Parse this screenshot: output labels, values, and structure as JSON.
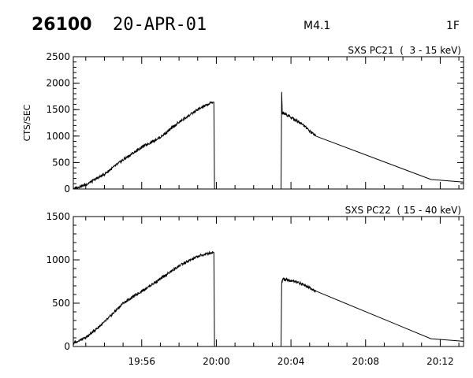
{
  "header": {
    "event_id": "26100",
    "date": "20-APR-01",
    "flare_class": "M4.1",
    "code": "1F"
  },
  "chart_data": [
    {
      "type": "line",
      "title": "SXS PC21  (  3 - 15 keV)",
      "ylabel": "CTS/SEC",
      "xlim": [
        "19:52:20",
        "20:13:15"
      ],
      "ylim": [
        0,
        2500
      ],
      "yticks": [
        0,
        500,
        1000,
        1500,
        2000,
        2500
      ],
      "xticks": [
        "19:56",
        "20:00",
        "20:04",
        "20:08",
        "20:12"
      ],
      "series": [
        {
          "segments": [
            {
              "x": [
                "19:52:20",
                "19:53:00",
                "19:54:00",
                "19:55:00",
                "19:56:00",
                "19:57:00",
                "19:58:00",
                "19:59:00",
                "19:59:50"
              ],
              "y": [
                10,
                80,
                280,
                550,
                790,
                980,
                1260,
                1500,
                1650
              ]
            },
            {
              "x": [
                "19:59:52",
                "19:59:54"
              ],
              "y": [
                1650,
                0
              ]
            },
            {
              "x": [
                "20:03:28",
                "20:03:30",
                "20:03:32",
                "20:03:40",
                "20:04:30",
                "20:05:20"
              ],
              "y": [
                0,
                1850,
                1450,
                1420,
                1250,
                1000
              ]
            },
            {
              "x": [
                "20:05:20",
                "20:11:30",
                "20:13:15"
              ],
              "y": [
                1000,
                180,
                130
              ]
            }
          ]
        }
      ]
    },
    {
      "type": "line",
      "title": "SXS PC22  ( 15 - 40 keV)",
      "ylabel": "",
      "xlim": [
        "19:52:20",
        "20:13:15"
      ],
      "ylim": [
        0,
        1500
      ],
      "yticks": [
        0,
        500,
        1000,
        1500
      ],
      "xticks": [
        "19:56",
        "20:00",
        "20:04",
        "20:08",
        "20:12"
      ],
      "series": [
        {
          "segments": [
            {
              "x": [
                "19:52:20",
                "19:53:00",
                "19:54:00",
                "19:55:00",
                "19:56:00",
                "19:57:00",
                "19:58:00",
                "19:59:00",
                "19:59:50"
              ],
              "y": [
                40,
                100,
                280,
                500,
                640,
                780,
                930,
                1040,
                1090
              ]
            },
            {
              "x": [
                "19:59:52",
                "19:59:54"
              ],
              "y": [
                1090,
                0
              ]
            },
            {
              "x": [
                "20:03:28",
                "20:03:30",
                "20:03:36",
                "20:04:30",
                "20:05:20"
              ],
              "y": [
                0,
                740,
                780,
                730,
                640
              ]
            },
            {
              "x": [
                "20:05:20",
                "20:11:30",
                "20:13:15"
              ],
              "y": [
                640,
                90,
                60
              ]
            }
          ]
        }
      ]
    }
  ]
}
